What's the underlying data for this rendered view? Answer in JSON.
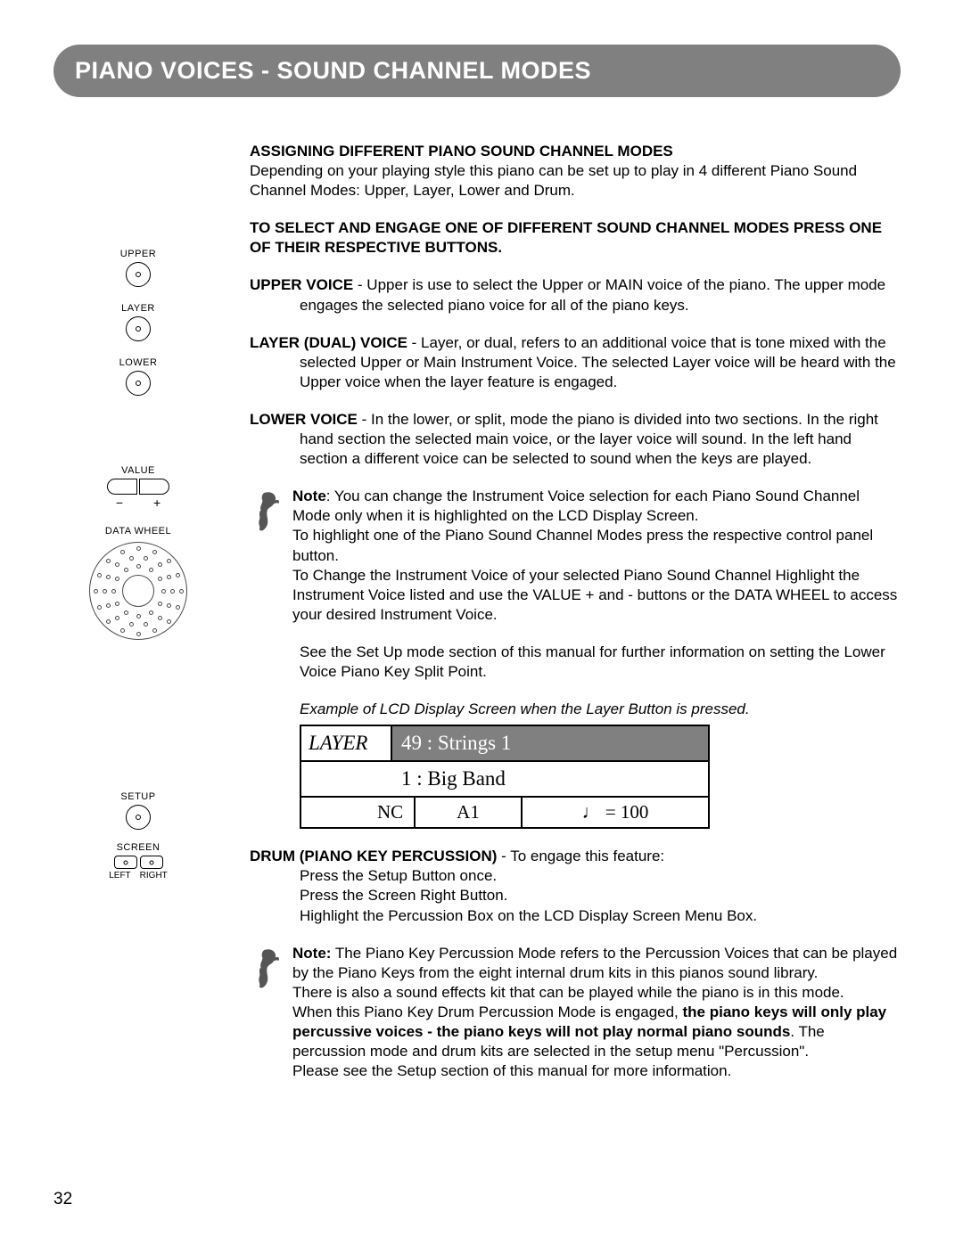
{
  "header": {
    "title": "PIANO VOICES - SOUND CHANNEL MODES"
  },
  "sections": {
    "assign_head": "ASSIGNING DIFFERENT PIANO SOUND CHANNEL MODES",
    "assign_body": "Depending on your playing style this piano can be set up to play in 4 different Piano Sound Channel Modes: Upper, Layer, Lower and Drum.",
    "select_head": "TO SELECT AND ENGAGE ONE OF DIFFERENT SOUND CHANNEL MODES PRESS ONE OF THEIR RESPECTIVE BUTTONS.",
    "upper_lbl": "UPPER VOICE",
    "upper_body": " - Upper is use to select the Upper or MAIN voice of the piano. The upper mode engages the selected piano voice for all of the piano keys.",
    "layer_lbl": "LAYER (DUAL) VOICE",
    "layer_body": " - Layer, or dual, refers to an additional voice that is tone mixed with the selected Upper or Main Instrument Voice.  The selected Layer voice will be heard with the Upper voice when the layer feature is engaged.",
    "lower_lbl": "LOWER VOICE",
    "lower_body": " - In the lower, or split, mode the piano is divided into two sections.  In the right hand section the selected main voice, or the layer voice will sound.  In the left hand section a different voice can be selected to sound when the keys are played.",
    "note1_lbl": "Note",
    "note1_body": ": You can change the Instrument Voice selection for each Piano Sound Channel Mode only when it is highlighted on the LCD Display Screen.",
    "note1_p2": "To highlight one of the Piano Sound Channel Modes press the respective control panel button.",
    "note1_p3": "To Change the Instrument Voice of your selected Piano Sound Channel Highlight the Instrument Voice listed and use the VALUE + and - buttons or the DATA WHEEL to access your desired Instrument Voice.",
    "setup_ref": "See the Set Up mode section of this manual for further information on setting the Lower Voice Piano Key Split Point.",
    "lcd_caption": "Example of LCD Display Screen when the Layer Button is pressed.",
    "drum_lbl": "DRUM (PIANO KEY PERCUSSION)",
    "drum_body": " - To engage this feature:",
    "drum_s1": "Press the Setup Button once.",
    "drum_s2": "Press the Screen Right Button.",
    "drum_s3": "Highlight the Percussion Box on the LCD Display Screen Menu Box.",
    "note2_lbl": "Note:",
    "note2_p1": " The Piano Key Percussion Mode refers to the Percussion Voices that can be played by the Piano Keys from the eight internal drum kits in this pianos sound library.",
    "note2_p2": "There is also a sound effects kit that can be played while the piano is in this mode.",
    "note2_p3a": "When this Piano Key Drum Percussion Mode is engaged, ",
    "note2_p3b": "the piano keys will only play percussive voices - the piano keys will not play normal piano sounds",
    "note2_p3c": ".   The percussion mode and drum kits are selected in the setup menu \"Percussion\".",
    "note2_p4": "Please see the Setup section of this manual for more information."
  },
  "buttons": {
    "upper": "UPPER",
    "layer": "LAYER",
    "lower": "LOWER",
    "value": "VALUE",
    "minus": "−",
    "plus": "+",
    "datawheel": "DATA WHEEL",
    "setup": "SETUP",
    "screen": "SCREEN",
    "left": "LEFT",
    "right": "RIGHT"
  },
  "lcd": {
    "mode": "LAYER",
    "voice1": "49  :  Strings  1",
    "voice2": "1  :  Big Band",
    "c1": "NC",
    "c2": "A1",
    "c3": "♩  =  100"
  },
  "page_number": "32"
}
